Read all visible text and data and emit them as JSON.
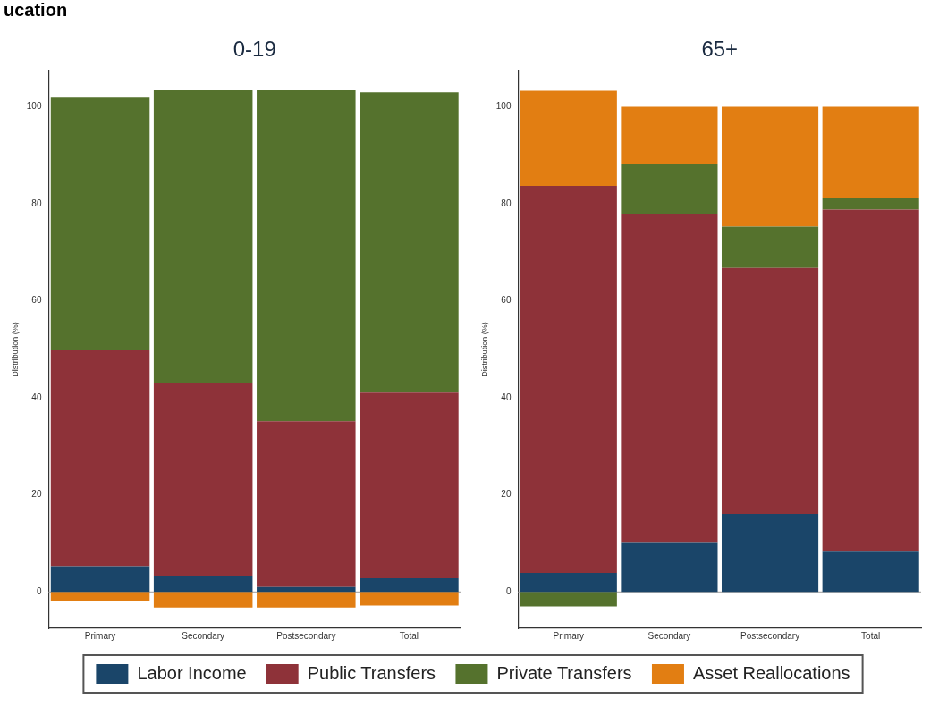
{
  "chart_data": [
    {
      "type": "bar",
      "stacked": true,
      "title": "0-19",
      "ylabel": "Distribution (%)",
      "annotations": [
        "ucation"
      ],
      "categories": [
        "Primary",
        "Secondary",
        "Postsecondary",
        "Total"
      ],
      "ylim": [
        -7.5,
        107.5
      ],
      "yticks": [
        0,
        20,
        40,
        60,
        80,
        100
      ],
      "grid": false,
      "legend": "bottom",
      "ref_lines": [
        {
          "axis": "y",
          "value": 0,
          "color": "#b0b0b0"
        }
      ],
      "series": [
        {
          "name": "Labor Income",
          "color": "#1a4569",
          "values": [
            5.3,
            3.2,
            1,
            2.8
          ]
        },
        {
          "name": "Public Transfers",
          "color": "#8e3239",
          "values": [
            44.5,
            39.8,
            34.2,
            38.3
          ]
        },
        {
          "name": "Private Transfers",
          "color": "#55722d",
          "values": [
            52.1,
            60.4,
            68.2,
            61.9
          ]
        },
        {
          "name": "Asset Reallocations",
          "color": "#e27e12",
          "values": [
            -1.9,
            -3.2,
            -3.2,
            -2.8
          ]
        }
      ]
    },
    {
      "type": "bar",
      "stacked": true,
      "title": "65+",
      "ylabel": "Distribution (%)",
      "categories": [
        "Primary",
        "Secondary",
        "Postsecondary",
        "Total"
      ],
      "ylim": [
        -7.5,
        107.5
      ],
      "yticks": [
        0,
        20,
        40,
        60,
        80,
        100
      ],
      "grid": false,
      "ref_lines": [
        {
          "axis": "y",
          "value": 0,
          "color": "#b0b0b0"
        }
      ],
      "series": [
        {
          "color": "#1a4569",
          "values": [
            3.9,
            10.3,
            16.1,
            8.3
          ]
        },
        {
          "color": "#8e3239",
          "values": [
            79.8,
            67.5,
            50.7,
            70.5
          ]
        },
        {
          "color": "#55722d",
          "values": [
            -3,
            10.3,
            8.5,
            2.4
          ]
        },
        {
          "color": "#e27e12",
          "values": [
            19.6,
            11.9,
            24.7,
            18.8
          ]
        }
      ]
    }
  ]
}
